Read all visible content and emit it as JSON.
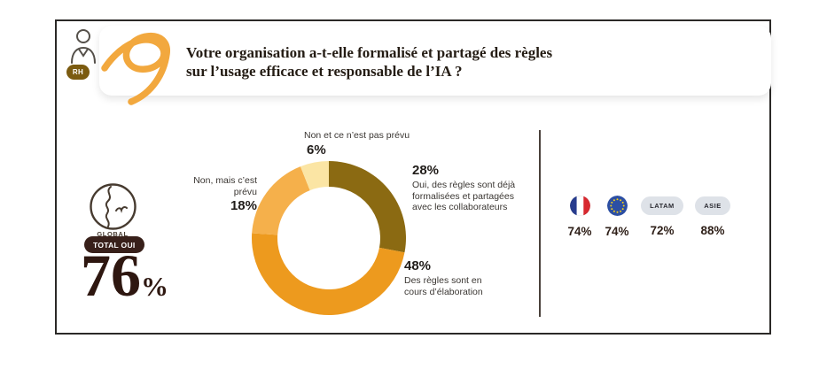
{
  "card": {
    "rh_badge": "RH",
    "title_line1": "Votre organisation a-t-elle formalisé et partagé des règles",
    "title_line2": "sur l’usage efficace et responsable de l’IA ?"
  },
  "global_stat": {
    "region_label": "GLOBAL",
    "badge": "TOTAL OUI",
    "value": "76",
    "unit": "%"
  },
  "donut_labels": {
    "top": {
      "label": "Non et ce n’est pas prévu",
      "pct": "6%"
    },
    "right": {
      "pct": "28%",
      "line1": "Oui, des règles sont déjà",
      "line2": "formalisées et partagées",
      "line3": "avec les collaborateurs"
    },
    "bottom_right": {
      "pct": "48%",
      "line1": "Des règles sont en",
      "line2": "cours d’élaboration"
    },
    "left": {
      "label": "Non, mais c’est prévu",
      "pct": "18%"
    }
  },
  "regions": {
    "fr": {
      "value": "74%"
    },
    "eu": {
      "value": "74%"
    },
    "latam": {
      "label": "LATAM",
      "value": "72%"
    },
    "asie": {
      "label": "ASIE",
      "value": "88%"
    }
  },
  "chart_data": {
    "type": "pie",
    "subtype": "donut",
    "title": "Votre organisation a-t-elle formalisé et partagé des règles sur l’usage efficace et responsable de l’IA ?",
    "unit": "percent",
    "start_angle_deg": 0,
    "direction": "clockwise",
    "segments": [
      {
        "label": "Oui, des règles sont déjà formalisées et partagées avec les collaborateurs",
        "value": 28,
        "color": "#8B6A12"
      },
      {
        "label": "Des règles sont en cours d’élaboration",
        "value": 48,
        "color": "#ED9A1E"
      },
      {
        "label": "Non, mais c’est prévu",
        "value": 18,
        "color": "#F5B04B"
      },
      {
        "label": "Non et ce n’est pas prévu",
        "value": 6,
        "color": "#FBE5A4"
      }
    ],
    "total_oui": "76%",
    "regional_values": [
      {
        "name": "France",
        "value": "74%"
      },
      {
        "name": "Europe",
        "value": "74%"
      },
      {
        "name": "LATAM",
        "value": "72%"
      },
      {
        "name": "ASIE",
        "value": "88%"
      }
    ],
    "colors": {
      "badge_dark": "#38201A",
      "rh_gold": "#7B5B10",
      "swirl_gold": "#F2A83E"
    }
  }
}
